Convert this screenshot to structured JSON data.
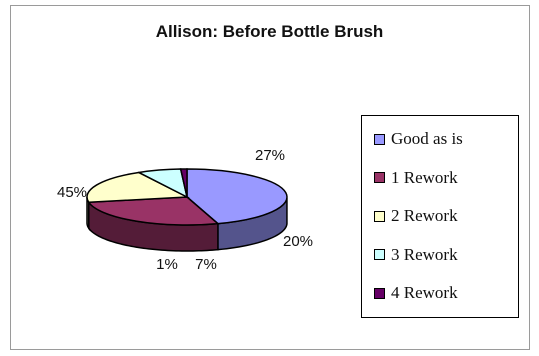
{
  "chart_data": {
    "type": "pie",
    "title": "Allison:   Before Bottle Brush",
    "slices": [
      {
        "name": "Good as is",
        "value": 45,
        "label": "45%",
        "color": "#9999ff"
      },
      {
        "name": "1 Rework",
        "value": 27,
        "label": "27%",
        "color": "#993366"
      },
      {
        "name": "2 Rework",
        "value": 20,
        "label": "20%",
        "color": "#ffffcc"
      },
      {
        "name": "3 Rework",
        "value": 7,
        "label": "7%",
        "color": "#ccffff"
      },
      {
        "name": "4 Rework",
        "value": 1,
        "label": "1%",
        "color": "#660066"
      }
    ],
    "legend_position": "right",
    "style": "3d"
  }
}
